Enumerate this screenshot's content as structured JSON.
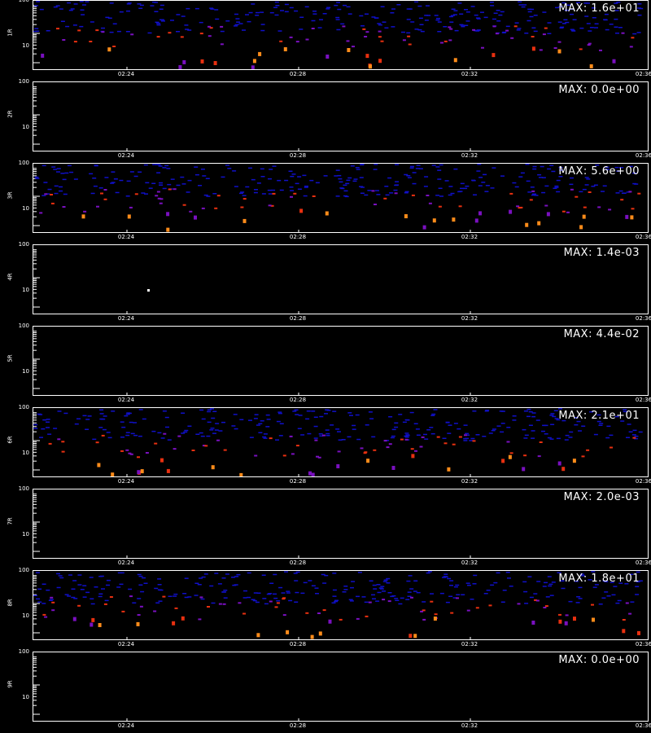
{
  "colors": {
    "background": "#000000",
    "axes": "#ffffff",
    "low": "#1010c8",
    "mid": "#7a10c0",
    "high": "#e83010",
    "peak": "#ff8c1a",
    "max_point": "#ffffff"
  },
  "chart_data": [
    {
      "type": "heatmap",
      "channel_label": "1R",
      "max_label": "MAX: 1.6e+01",
      "yticks": [
        "100",
        "10"
      ],
      "xticks": [
        "02:24",
        "02:28",
        "02:32",
        "02:36"
      ],
      "yscale": "log",
      "density": "high"
    },
    {
      "type": "heatmap",
      "channel_label": "2R",
      "max_label": "MAX: 0.0e+00",
      "yticks": [
        "100",
        "10"
      ],
      "xticks": [
        "02:24",
        "02:28",
        "02:32",
        "02:36"
      ],
      "yscale": "log",
      "density": "none"
    },
    {
      "type": "heatmap",
      "channel_label": "3R",
      "max_label": "MAX: 5.6e+00",
      "yticks": [
        "100",
        "10"
      ],
      "xticks": [
        "02:24",
        "02:28",
        "02:32",
        "02:36"
      ],
      "yscale": "log",
      "density": "high"
    },
    {
      "type": "heatmap",
      "channel_label": "4R",
      "max_label": "MAX: 1.4e-03",
      "yticks": [
        "100",
        "10"
      ],
      "xticks": [
        "02:24",
        "02:28",
        "02:32",
        "02:36"
      ],
      "yscale": "log",
      "density": "single"
    },
    {
      "type": "heatmap",
      "channel_label": "5R",
      "max_label": "MAX: 4.4e-02",
      "yticks": [
        "100",
        "10"
      ],
      "xticks": [
        "02:24",
        "02:28",
        "02:32",
        "02:36"
      ],
      "yscale": "log",
      "density": "none"
    },
    {
      "type": "heatmap",
      "channel_label": "6R",
      "max_label": "MAX: 2.1e+01",
      "yticks": [
        "100",
        "10"
      ],
      "xticks": [
        "02:24",
        "02:28",
        "02:32",
        "02:36"
      ],
      "yscale": "log",
      "density": "high"
    },
    {
      "type": "heatmap",
      "channel_label": "7R",
      "max_label": "MAX: 2.0e-03",
      "yticks": [
        "100",
        "10"
      ],
      "xticks": [
        "02:24",
        "02:28",
        "02:32",
        "02:36"
      ],
      "yscale": "log",
      "density": "none"
    },
    {
      "type": "heatmap",
      "channel_label": "8R",
      "max_label": "MAX: 1.8e+01",
      "yticks": [
        "100",
        "10"
      ],
      "xticks": [
        "02:24",
        "02:28",
        "02:32",
        "02:36"
      ],
      "yscale": "log",
      "density": "high"
    },
    {
      "type": "heatmap",
      "channel_label": "9R",
      "max_label": "MAX: 0.0e+00",
      "yticks": [
        "100",
        "10"
      ],
      "xticks": [
        "02:24",
        "02:28",
        "02:32",
        "02:36"
      ],
      "yscale": "log",
      "density": "none"
    }
  ]
}
